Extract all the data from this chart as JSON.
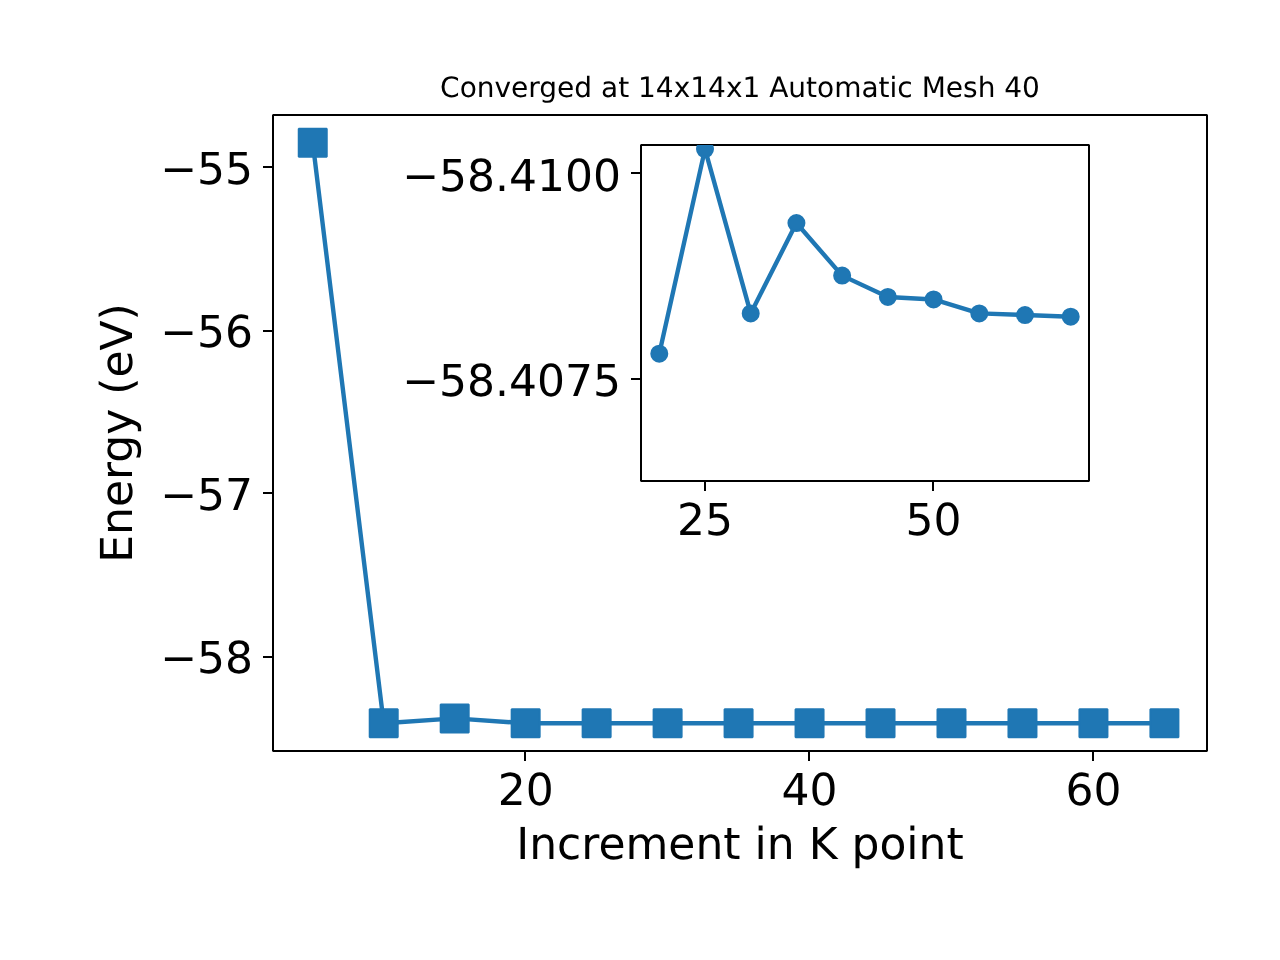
{
  "chart_data": [
    {
      "type": "line",
      "title": "Converged at 14x14x1 Automatic Mesh 40",
      "xlabel": "Increment in K point",
      "ylabel": "Energy (eV)",
      "x": [
        5,
        10,
        15,
        20,
        25,
        30,
        35,
        40,
        45,
        50,
        55,
        60,
        65
      ],
      "series": [
        {
          "color": "#1f77b4",
          "values": [
            -54.85,
            -58.41,
            -58.38,
            -58.41,
            -58.41,
            -58.41,
            -58.41,
            -58.41,
            -58.41,
            -58.41,
            -58.41,
            -58.41,
            -58.41
          ]
        }
      ],
      "xlim": [
        2.2,
        68
      ],
      "ylim": [
        -58.58,
        -54.68
      ],
      "xticks": [
        20,
        40,
        60
      ],
      "yticks": [
        {
          "value": -55,
          "label": "−55"
        },
        {
          "value": -56,
          "label": "−56"
        },
        {
          "value": -57,
          "label": "−57"
        },
        {
          "value": -58,
          "label": "−58"
        }
      ],
      "marker": "square",
      "line_style": "solid"
    },
    {
      "type": "line",
      "x": [
        20,
        25,
        30,
        35,
        40,
        45,
        50,
        55,
        60,
        65
      ],
      "series": [
        {
          "color": "#1f77b4",
          "values": [
            -58.40781,
            -58.4103,
            -58.4083,
            -58.4094,
            -58.40876,
            -58.4085,
            -58.40847,
            -58.4083,
            -58.40828,
            -58.40826
          ]
        }
      ],
      "xlim": [
        18,
        67
      ],
      "ylim": [
        -58.40626,
        -58.41035
      ],
      "xticks": [
        25,
        50
      ],
      "yticks": [
        {
          "value": -58.41,
          "label": "−58.4100"
        },
        {
          "value": -58.4075,
          "label": "−58.4075"
        }
      ],
      "marker": "circle",
      "line_style": "solid"
    }
  ]
}
